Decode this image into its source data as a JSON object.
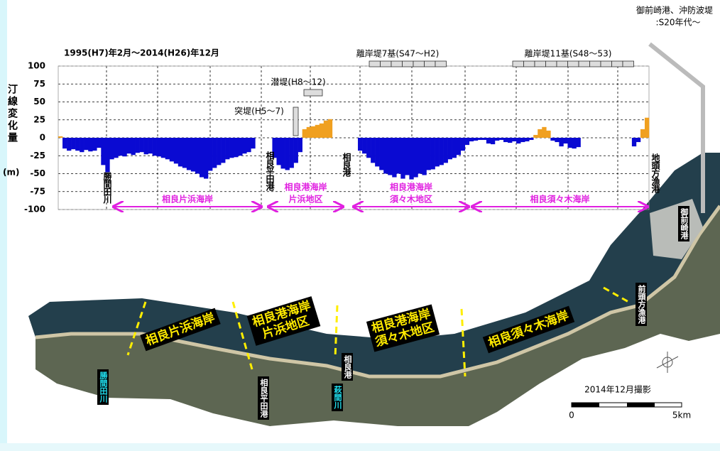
{
  "chart_data": {
    "type": "bar",
    "title": "1995(H7)年2月～2014(H26)年12月",
    "y_label": "汀線変化量",
    "y_unit": "(m)",
    "ylim": [
      -100,
      100
    ],
    "yticks": [
      100,
      75,
      50,
      25,
      0,
      -25,
      -50,
      -75,
      -100
    ],
    "grid": true,
    "color": "#0a0ad2",
    "positive_color": "#f0a020",
    "values": [
      2,
      -15,
      -18,
      -16,
      -18,
      -20,
      -17,
      -19,
      -18,
      -14,
      -38,
      -48,
      -30,
      -28,
      -25,
      -26,
      -22,
      -24,
      -21,
      -20,
      -23,
      -22,
      -25,
      -26,
      -28,
      -30,
      -33,
      -36,
      -40,
      -42,
      -45,
      -47,
      -50,
      -55,
      -57,
      -46,
      -42,
      -38,
      -35,
      -30,
      -28,
      -27,
      -25,
      -22,
      -20,
      -15,
      0,
      0,
      0,
      0,
      -28,
      -38,
      -43,
      -45,
      -42,
      -35,
      -20,
      12,
      15,
      16,
      18,
      20,
      24,
      26,
      0,
      0,
      0,
      0,
      0,
      0,
      -18,
      -22,
      -28,
      -35,
      -40,
      -45,
      -50,
      -52,
      -55,
      -50,
      -57,
      -52,
      -58,
      -55,
      -50,
      -52,
      -45,
      -44,
      -40,
      -38,
      -35,
      -30,
      -28,
      -24,
      -18,
      -10,
      -5,
      -4,
      -3,
      -3,
      -8,
      -9,
      -4,
      -3,
      -6,
      -7,
      -5,
      -8,
      -6,
      -5,
      -3,
      4,
      12,
      15,
      10,
      -4,
      -6,
      -12,
      -8,
      -14,
      -15,
      -13,
      0,
      0,
      0,
      0,
      0,
      0,
      0,
      0,
      0,
      0,
      0,
      0,
      -12,
      -6,
      12,
      28
    ],
    "annotations": [
      "離岸堤7基(S47～H2)",
      "離岸堤11基(S48～53)",
      "潜堤(H8～12)",
      "突堤(H5～7)"
    ],
    "locations": [
      "勝間田川",
      "相良平田港",
      "相良港",
      "地頭方漁港"
    ],
    "regions": [
      [
        "相良片浜海岸"
      ],
      [
        "相良港海岸",
        "片浜地区"
      ],
      [
        "相良港海岸",
        "須々木地区"
      ],
      [
        "相良須々木海岸"
      ]
    ],
    "note": [
      "御前崎港、沖防波堤",
      ":S20年代～"
    ]
  },
  "photo": {
    "areas": [
      [
        "相良片浜海岸"
      ],
      [
        "相良港海岸",
        "片浜地区"
      ],
      [
        "相良港海岸",
        "須々木地区"
      ],
      [
        "相良須々木海岸"
      ]
    ],
    "places": [
      "勝間田川",
      "相良平田港",
      "相良港",
      "萩間川",
      "前頭方漁港",
      "御前崎港"
    ],
    "caption": "2014年12月撮影",
    "scale": [
      "0",
      "5km"
    ]
  }
}
